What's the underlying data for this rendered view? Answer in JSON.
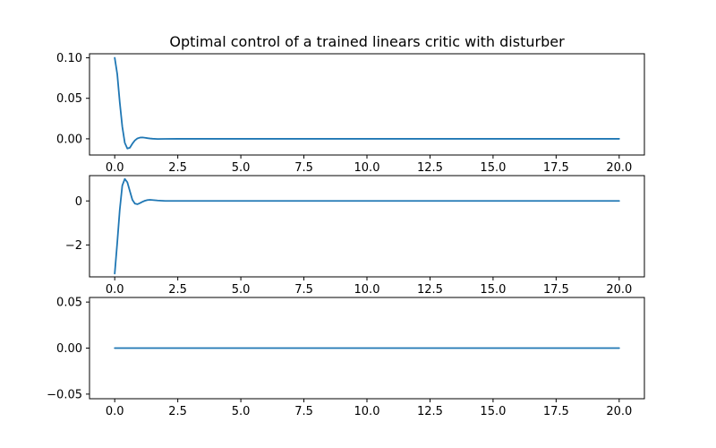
{
  "chart_data": {
    "type": "line",
    "title": "Optimal control of a trained linears critic with disturber",
    "line_color": "#1f77b4",
    "subplots": [
      {
        "xlim": [
          -1,
          21
        ],
        "ylim": [
          -0.02,
          0.105
        ],
        "xticks": [
          0,
          2.5,
          5,
          7.5,
          10,
          12.5,
          15,
          17.5,
          20
        ],
        "xtick_labels": [
          "0.0",
          "2.5",
          "5.0",
          "7.5",
          "10.0",
          "12.5",
          "15.0",
          "17.5",
          "20.0"
        ],
        "yticks": [
          0.0,
          0.05,
          0.1
        ],
        "ytick_labels": [
          "0.00",
          "0.05",
          "0.10"
        ],
        "series": [
          {
            "x": [
              0,
              0.1,
              0.2,
              0.3,
              0.4,
              0.5,
              0.6,
              0.7,
              0.8,
              0.9,
              1.0,
              1.1,
              1.2,
              1.3,
              1.4,
              1.5,
              1.7,
              2.0,
              2.5,
              3,
              20
            ],
            "y": [
              0.1,
              0.08,
              0.045,
              0.015,
              -0.005,
              -0.012,
              -0.011,
              -0.006,
              -0.002,
              0.0005,
              0.0015,
              0.0017,
              0.0013,
              0.0008,
              0.0004,
              0.0001,
              -0.0002,
              -0.0001,
              0,
              0,
              0
            ]
          }
        ]
      },
      {
        "xlim": [
          -1,
          21
        ],
        "ylim": [
          -3.45,
          1.15
        ],
        "xticks": [
          0,
          2.5,
          5,
          7.5,
          10,
          12.5,
          15,
          17.5,
          20
        ],
        "xtick_labels": [
          "0.0",
          "2.5",
          "5.0",
          "7.5",
          "10.0",
          "12.5",
          "15.0",
          "17.5",
          "20.0"
        ],
        "yticks": [
          -2,
          0
        ],
        "ytick_labels": [
          "−2",
          "0"
        ],
        "series": [
          {
            "x": [
              0,
              0.1,
              0.2,
              0.3,
              0.4,
              0.5,
              0.6,
              0.7,
              0.8,
              0.9,
              1.0,
              1.1,
              1.2,
              1.3,
              1.4,
              1.5,
              1.7,
              2.0,
              2.5,
              3,
              20
            ],
            "y": [
              -3.3,
              -1.9,
              -0.4,
              0.7,
              1.0,
              0.85,
              0.45,
              0.05,
              -0.12,
              -0.15,
              -0.1,
              -0.04,
              0.01,
              0.04,
              0.05,
              0.04,
              0.02,
              0.0,
              0,
              0,
              0
            ]
          }
        ]
      },
      {
        "xlim": [
          -1,
          21
        ],
        "ylim": [
          -0.055,
          0.055
        ],
        "xticks": [
          0,
          2.5,
          5,
          7.5,
          10,
          12.5,
          15,
          17.5,
          20
        ],
        "xtick_labels": [
          "0.0",
          "2.5",
          "5.0",
          "7.5",
          "10.0",
          "12.5",
          "15.0",
          "17.5",
          "20.0"
        ],
        "yticks": [
          -0.05,
          0.0,
          0.05
        ],
        "ytick_labels": [
          "−0.05",
          "0.00",
          "0.05"
        ],
        "series": [
          {
            "x": [
              0,
              20
            ],
            "y": [
              0,
              0
            ]
          }
        ]
      }
    ]
  }
}
